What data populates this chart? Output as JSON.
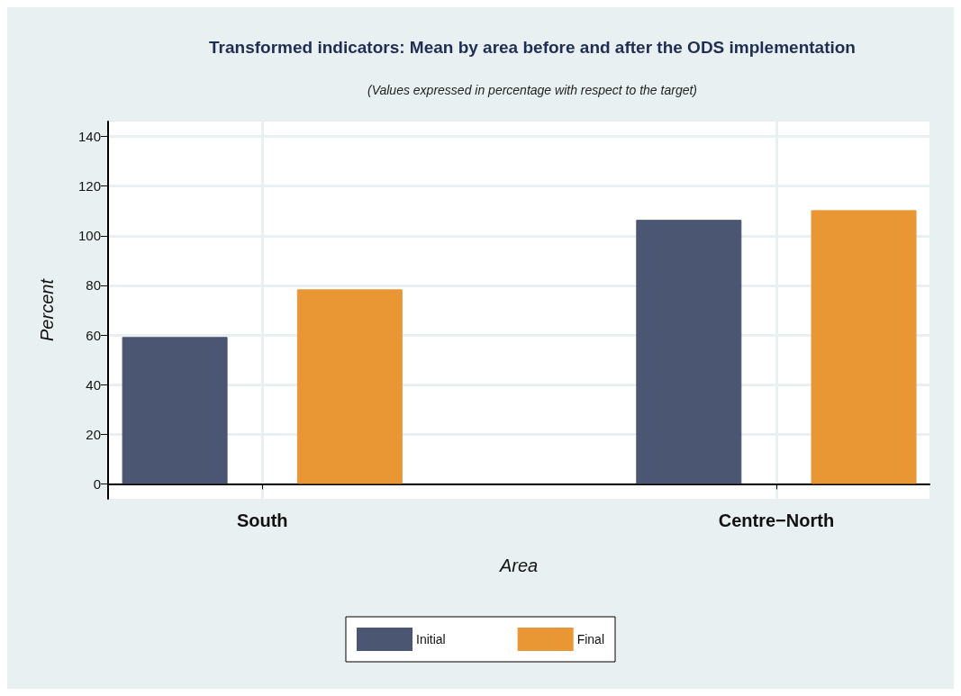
{
  "chart_data": {
    "type": "bar",
    "title": "Transformed indicators: Mean by area before and after the ODS implementation",
    "subtitle": "(Values expressed in percentage with respect to the target)",
    "xlabel": "Area",
    "ylabel": "Percent",
    "categories": [
      "South",
      "Centre−North"
    ],
    "series": [
      {
        "name": "Initial",
        "color": "#4b5673",
        "values": [
          59.2,
          106.4
        ]
      },
      {
        "name": "Final",
        "color": "#e99735",
        "values": [
          78.4,
          110.3
        ]
      }
    ],
    "ylim": [
      -6,
      146
    ],
    "yticks": [
      0,
      20,
      40,
      60,
      80,
      100,
      120,
      140
    ],
    "grid": true,
    "legend": "bottom"
  }
}
